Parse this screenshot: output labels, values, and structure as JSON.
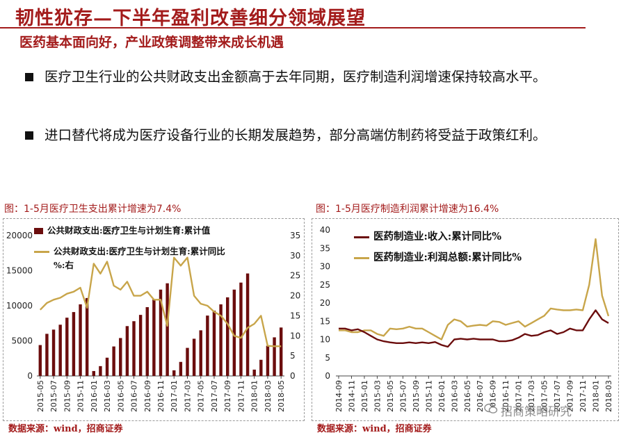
{
  "header": {
    "title": "韧性犹存—下半年盈利改善细分领域展望",
    "subtitle": "医药基本面向好，产业政策调整带来成长机遇"
  },
  "bullets": [
    "医疗卫生行业的公共财政支出金额高于去年同期，医疗制造利润增速保持较高水平。",
    "进口替代将成为医疗设备行业的长期发展趋势，部分高端仿制药将受益于政策红利。"
  ],
  "watermark": "招商策略研究",
  "colors": {
    "accent": "#a31b1b",
    "bar": "#6b0d0d",
    "gold": "#c8a54a",
    "dark": "#6b0d0d"
  },
  "chart_data": [
    {
      "type": "bar",
      "caption": "图：1-5月医疗卫生支出累计增速为7.4%",
      "source": "数据来源：wind，招商证券",
      "legend": [
        "公共财政支出:医疗卫生与计划生育:累计值",
        "公共财政支出:医疗卫生与计划生育:累计同比",
        "%:右"
      ],
      "x_tick_labels": [
        "2015-05",
        "2015-07",
        "2015-09",
        "2015-11",
        "2016-01",
        "2016-03",
        "2016-05",
        "2016-07",
        "2016-09",
        "2016-11",
        "2017-01",
        "2017-03",
        "2017-05",
        "2017-07",
        "2017-09",
        "2017-11",
        "2018-01",
        "2018-03",
        "2018-05"
      ],
      "left_axis": {
        "ylim": [
          0,
          20000
        ],
        "ticks": [
          "0",
          "5000",
          "10000",
          "15000",
          "20000"
        ]
      },
      "right_axis": {
        "ylim": [
          0,
          35
        ],
        "ticks": [
          "0",
          "5",
          "10",
          "15",
          "20",
          "25",
          "30",
          "35"
        ]
      },
      "series": [
        {
          "name": "累计值",
          "kind": "bar",
          "axis": "left",
          "values": [
            4400,
            6000,
            6600,
            7300,
            8300,
            9100,
            10200,
            11100,
            700,
            1400,
            2600,
            4200,
            5400,
            7100,
            7800,
            8700,
            9800,
            10900,
            12300,
            13200,
            800,
            2000,
            4000,
            5300,
            6500,
            8600,
            9300,
            10200,
            11200,
            12300,
            13300,
            14600,
            900,
            2300,
            4300,
            5500,
            6900
          ]
        },
        {
          "name": "累计同比",
          "kind": "line",
          "axis": "right",
          "values": [
            16.5,
            18.2,
            19.0,
            19.5,
            20.5,
            21.0,
            22.0,
            17.0,
            28.0,
            25.5,
            28.5,
            22.5,
            21.5,
            23.5,
            20.0,
            20.0,
            21.0,
            19.0,
            19.0,
            12.5,
            29.5,
            27.5,
            29.5,
            20.0,
            18.0,
            17.5,
            16.0,
            15.0,
            13.0,
            10.0,
            9.5,
            12.0,
            13.0,
            15.0,
            7.5,
            7.4,
            7.4
          ]
        }
      ]
    },
    {
      "type": "line",
      "caption": "图：1-5月医疗制造利润累计增速为16.4%",
      "source": "数据来源：wind，招商证券",
      "legend": [
        "医药制造业:收入:累计同比%",
        "医药制造业:利润总额:累计同比%"
      ],
      "x_tick_labels": [
        "2014-09",
        "2014-11",
        "2015-01",
        "2015-03",
        "2015-05",
        "2015-07",
        "2015-09",
        "2015-11",
        "2016-01",
        "2016-03",
        "2016-05",
        "2016-07",
        "2016-09",
        "2016-11",
        "2017-01",
        "2017-03",
        "2017-05",
        "2017-07",
        "2017-09",
        "2017-11",
        "2018-01",
        "2018-03"
      ],
      "ylim": [
        0,
        40
      ],
      "y_ticks": [
        "0",
        "5",
        "10",
        "15",
        "20",
        "25",
        "30",
        "35",
        "40"
      ],
      "series": [
        {
          "name": "医药制造业:收入:累计同比%",
          "values": [
            13.0,
            13.0,
            12.5,
            12.8,
            12.0,
            11.0,
            10.0,
            9.5,
            9.2,
            9.0,
            9.0,
            9.2,
            9.0,
            9.2,
            9.0,
            9.3,
            8.5,
            8.0,
            10.0,
            10.2,
            10.0,
            10.2,
            10.0,
            10.0,
            10.0,
            9.5,
            9.5,
            9.8,
            10.5,
            11.5,
            11.0,
            11.2,
            12.0,
            12.5,
            11.5,
            12.0,
            13.0,
            12.5,
            12.5,
            15.5,
            18.0,
            15.5,
            14.5
          ]
        },
        {
          "name": "医药制造业:利润总额:累计同比%",
          "values": [
            12.5,
            12.5,
            12.0,
            12.0,
            12.5,
            12.5,
            11.5,
            11.0,
            13.0,
            12.8,
            13.0,
            13.5,
            13.0,
            13.0,
            12.0,
            11.0,
            10.0,
            14.0,
            15.5,
            15.0,
            13.5,
            13.8,
            14.0,
            13.8,
            15.0,
            14.8,
            14.0,
            14.5,
            15.0,
            13.5,
            14.5,
            15.5,
            16.5,
            18.5,
            18.2,
            18.0,
            18.0,
            18.2,
            18.0,
            25.0,
            37.5,
            22.0,
            16.4
          ]
        }
      ]
    }
  ]
}
